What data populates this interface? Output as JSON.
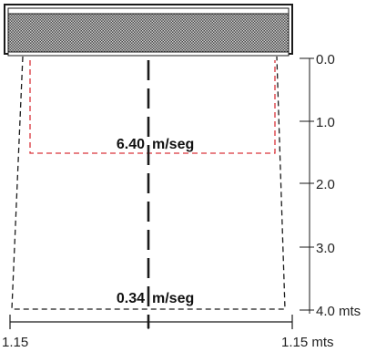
{
  "colors": {
    "stroke": "#1a1a1a",
    "high_velocity_zone": "#d9343b",
    "unit_fill": "#6e6e6e"
  },
  "speed_labels": {
    "near": {
      "value": "6.40",
      "unit": "m/seg"
    },
    "far": {
      "value": "0.34",
      "unit": "m/seg"
    }
  },
  "distance_scale": {
    "ticks": [
      "0.0",
      "1.0",
      "2.0",
      "3.0",
      "4.0 mts"
    ]
  },
  "width_scale": {
    "left": "1.15",
    "right": "1.15 mts"
  }
}
